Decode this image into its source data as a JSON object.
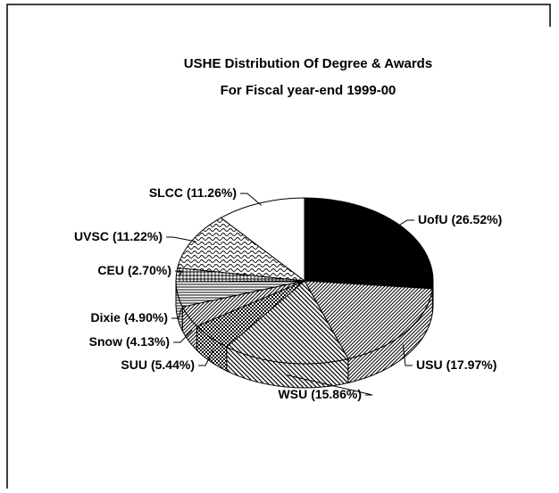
{
  "chart_data": {
    "type": "pie3d",
    "title": "USHE Distribution Of Degree & Awards",
    "subtitle": "For Fiscal year-end 1999-00",
    "categories": [
      "UofU",
      "USU",
      "WSU",
      "SUU",
      "Snow",
      "Dixie",
      "CEU",
      "UVSC",
      "SLCC"
    ],
    "values": [
      26.52,
      17.97,
      15.86,
      5.44,
      4.13,
      4.9,
      2.7,
      11.22,
      11.26
    ],
    "value_labels": [
      "(26.52%)",
      "(17.97%)",
      "(15.86%)",
      "(5.44%)",
      "(4.13%)",
      "(4.90%)",
      "(2.70%)",
      "(11.22%)",
      "(11.26%)"
    ],
    "patterns": [
      "solid",
      "diag",
      "diag2",
      "check",
      "diag",
      "hlines",
      "grid",
      "waves",
      "none"
    ]
  }
}
